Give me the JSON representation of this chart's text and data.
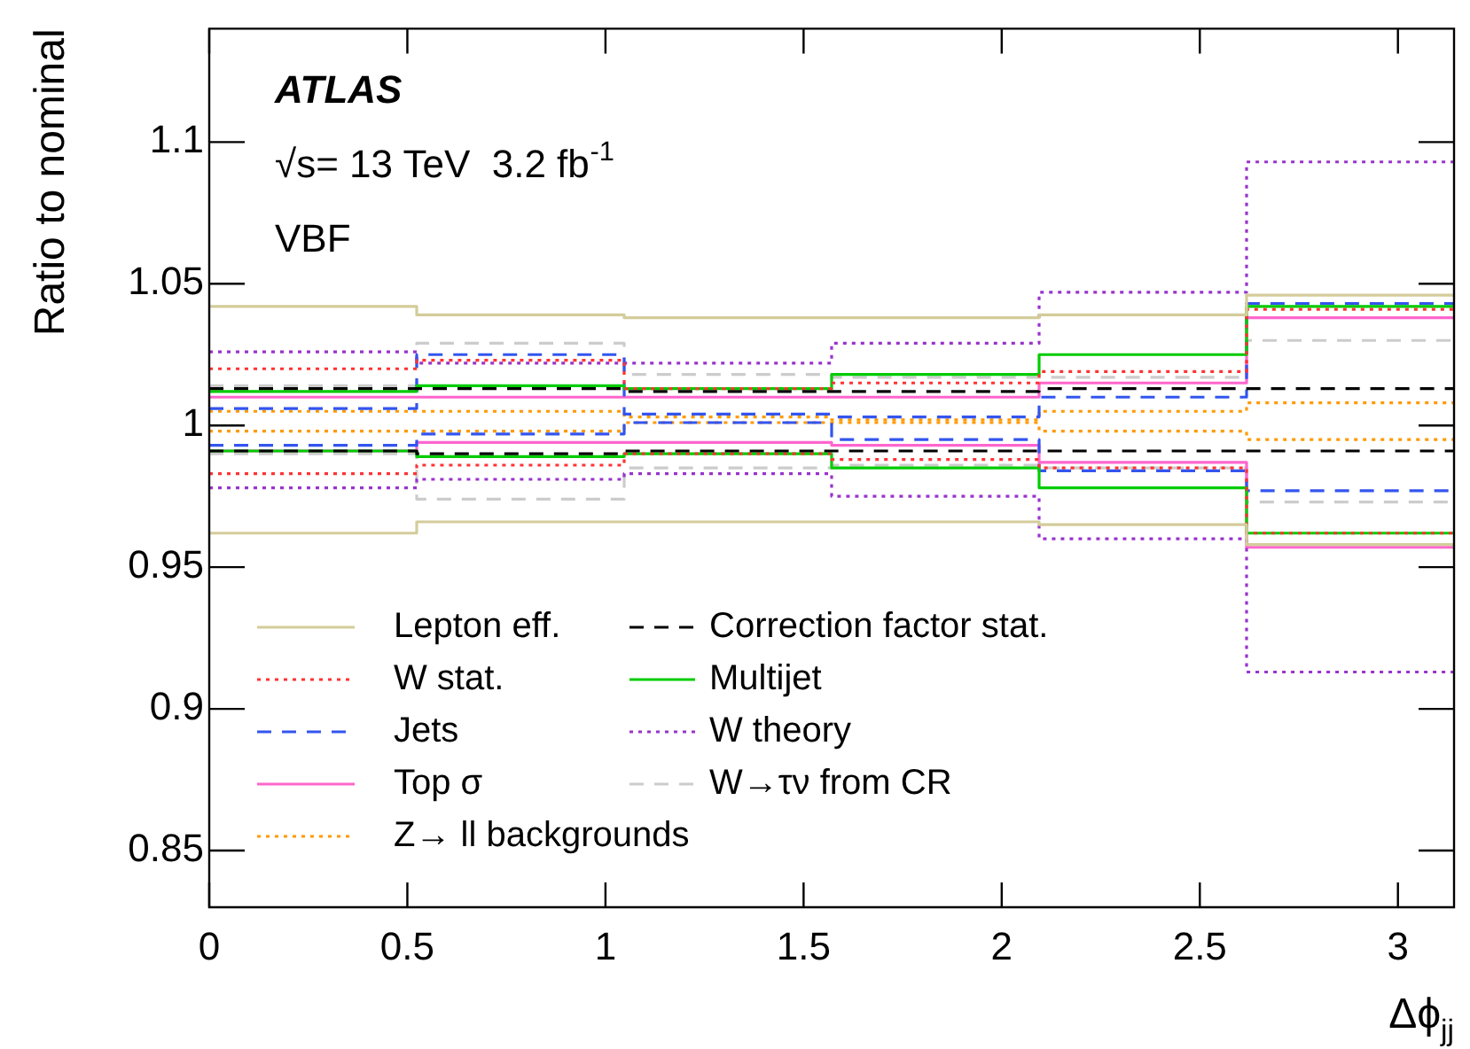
{
  "chart_data": {
    "type": "histogram",
    "xlabel": "Δϕ$_{jj}$",
    "ylabel": "Ratio to nominal",
    "annotations": [
      "ATLAS",
      "√s= 13 TeV  3.2 fb$^{-1}$",
      "VBF"
    ],
    "bins": [
      0,
      0.5236,
      1.0472,
      1.5708,
      2.0944,
      2.618,
      3.1416
    ],
    "xlim": [
      0,
      3.1416
    ],
    "xticks": [
      0,
      0.5,
      1,
      1.5,
      2,
      2.5,
      3
    ],
    "ylim": [
      0.83,
      1.14
    ],
    "yticks": [
      0.85,
      0.9,
      0.95,
      1,
      1.05,
      1.1
    ],
    "grid": false,
    "legend": "bottom left",
    "series": [
      {
        "name": "Lepton eff.",
        "color": "#d4cc9a",
        "line_style": "solid",
        "values": [
          1.042,
          1.039,
          1.038,
          1.038,
          1.039,
          1.046
        ]
      },
      {
        "color": "#d4cc9b",
        "line_style": "solid",
        "values": [
          0.962,
          0.966,
          0.966,
          0.966,
          0.965,
          0.958
        ]
      },
      {
        "name": "Correction factor stat.",
        "color": "#000000",
        "line_style": "dashed",
        "values": [
          1.013,
          1.013,
          1.012,
          1.012,
          1.013,
          1.013
        ]
      },
      {
        "color": "#010101",
        "line_style": "dashed",
        "values": [
          0.991,
          0.99,
          0.991,
          0.991,
          0.991,
          0.991
        ]
      },
      {
        "name": "W stat.",
        "color": "#ff3333",
        "line_style": "dotted",
        "values": [
          1.02,
          1.023,
          1.013,
          1.015,
          1.019,
          1.041
        ]
      },
      {
        "color": "#ff3334",
        "line_style": "dotted",
        "values": [
          0.983,
          0.986,
          0.99,
          0.988,
          0.985,
          0.962
        ]
      },
      {
        "name": "Multijet",
        "color": "#00cc00",
        "line_style": "solid",
        "values": [
          1.012,
          1.014,
          1.013,
          1.018,
          1.025,
          1.042
        ]
      },
      {
        "color": "#00cc01",
        "line_style": "solid",
        "values": [
          0.991,
          0.989,
          0.99,
          0.985,
          0.978,
          0.962
        ]
      },
      {
        "name": "Jets",
        "color": "#3355ee",
        "line_style": "dashed",
        "values": [
          1.006,
          1.025,
          1.004,
          1.003,
          1.01,
          1.043
        ]
      },
      {
        "color": "#3355ef",
        "line_style": "dashed",
        "values": [
          0.993,
          0.997,
          1.001,
          0.995,
          0.984,
          0.977
        ]
      },
      {
        "name": "W theory",
        "color": "#9933cc",
        "line_style": "dotted",
        "values": [
          1.026,
          1.022,
          1.022,
          1.029,
          1.047,
          1.093
        ]
      },
      {
        "color": "#9933cd",
        "line_style": "dotted",
        "values": [
          0.978,
          0.981,
          0.983,
          0.975,
          0.96,
          0.913
        ]
      },
      {
        "name": "Top σ",
        "color": "#ff66cc",
        "line_style": "solid",
        "values": [
          1.01,
          1.01,
          1.01,
          1.01,
          1.015,
          1.038
        ]
      },
      {
        "color": "#ff66cd",
        "line_style": "solid",
        "values": [
          0.991,
          0.994,
          0.994,
          0.993,
          0.987,
          0.957
        ]
      },
      {
        "name": "W→τν from CR",
        "color": "#cccccc",
        "line_style": "dashed",
        "values": [
          1.014,
          1.029,
          1.018,
          1.017,
          1.017,
          1.03
        ]
      },
      {
        "color": "#cccccd",
        "line_style": "dashed",
        "values": [
          0.99,
          0.974,
          0.985,
          0.986,
          0.985,
          0.973
        ]
      },
      {
        "name": "Z→ ll backgrounds",
        "color": "#ff9900",
        "line_style": "dotted",
        "values": [
          1.005,
          1.005,
          1.003,
          1.002,
          1.005,
          1.008
        ]
      },
      {
        "color": "#ff9901",
        "line_style": "dotted",
        "values": [
          0.998,
          0.998,
          1.001,
          1.001,
          0.998,
          0.995
        ]
      }
    ]
  }
}
